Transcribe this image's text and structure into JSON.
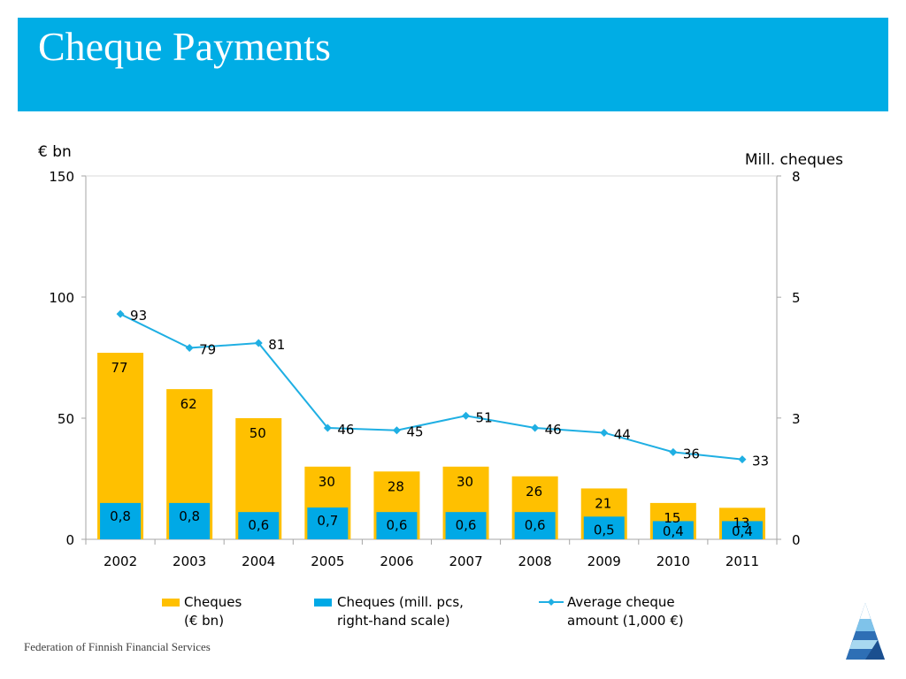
{
  "slide": {
    "title": "Cheque Payments",
    "footer": "Federation of Finnish Financial Services"
  },
  "colors": {
    "header_bg": "#00ADE5",
    "cheques_eur": "#FFC000",
    "cheques_count": "#00A9E6",
    "average_line": "#1FAFE3"
  },
  "chart_data": {
    "type": "bar",
    "categories": [
      "2002",
      "2003",
      "2004",
      "2005",
      "2006",
      "2007",
      "2008",
      "2009",
      "2010",
      "2011"
    ],
    "y_left": {
      "label": "€ bn",
      "ylim": [
        0,
        150
      ],
      "ticks": [
        "0",
        "50",
        "100",
        "150"
      ],
      "tick_values": [
        0,
        50,
        100,
        150
      ]
    },
    "y_right": {
      "label": "Mill. cheques",
      "ylim": [
        0,
        8
      ],
      "ticks": [
        "0",
        "3",
        "5",
        "8"
      ],
      "tick_values": [
        0,
        2.67,
        5.33,
        8
      ]
    },
    "series": [
      {
        "name": "Cheques\n(€ bn)",
        "kind": "bar",
        "axis": "left",
        "values": [
          77,
          62,
          50,
          30,
          28,
          30,
          26,
          21,
          15,
          13
        ],
        "labels": [
          "77",
          "62",
          "50",
          "30",
          "28",
          "30",
          "26",
          "21",
          "15",
          "13"
        ]
      },
      {
        "name": "Cheques (mill. pcs,\nright-hand scale)",
        "kind": "bar",
        "axis": "right",
        "values": [
          0.8,
          0.8,
          0.6,
          0.7,
          0.6,
          0.6,
          0.6,
          0.5,
          0.4,
          0.4
        ],
        "labels": [
          "0,8",
          "0,8",
          "0,6",
          "0,7",
          "0,6",
          "0,6",
          "0,6",
          "0,5",
          "0,4",
          "0,4"
        ]
      },
      {
        "name": "Average cheque\namount (1,000 €)",
        "kind": "line",
        "axis": "left",
        "values": [
          93,
          79,
          81,
          46,
          45,
          51,
          46,
          44,
          36,
          33
        ],
        "labels": [
          "93",
          "79",
          "81",
          "46",
          "45",
          "51",
          "46",
          "44",
          "36",
          "33"
        ]
      }
    ],
    "legend": "bottom",
    "grid": false
  }
}
